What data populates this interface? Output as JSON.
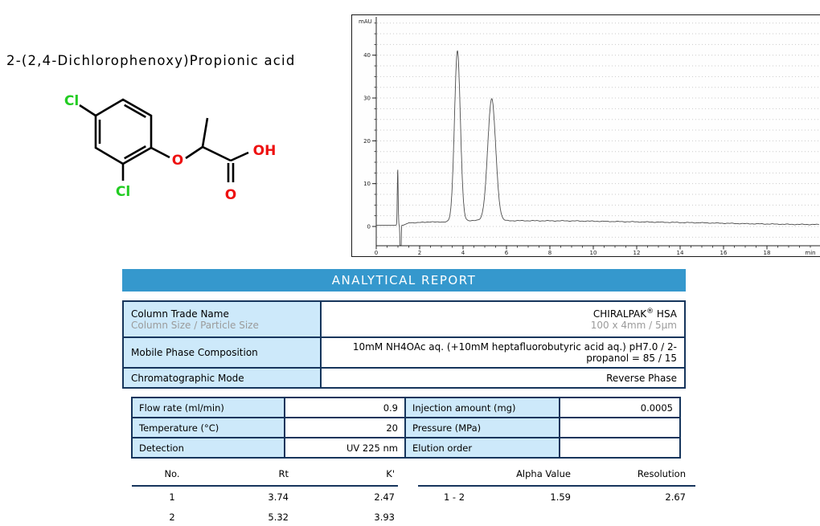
{
  "compound": {
    "name": "2-(2,4-Dichlorophenoxy)Propionic acid",
    "atoms": {
      "cl_top": "Cl",
      "cl_bottom": "Cl",
      "ether_o": "O",
      "carbonyl_o": "O",
      "hydroxyl": "OH"
    }
  },
  "chart_data": {
    "type": "line",
    "title": "",
    "xlabel": "min",
    "ylabel": "mAU",
    "xlim": [
      0,
      20.4
    ],
    "ylim": [
      -4.5,
      49
    ],
    "grid": "dotted horizontal",
    "x_ticks": [
      0,
      2,
      4,
      6,
      8,
      10,
      12,
      14,
      16,
      18
    ],
    "x_minor_step": 0.5,
    "y_ticks": [
      0,
      10,
      20,
      30,
      40
    ],
    "y_minor_step": 2.5,
    "peaks": [
      {
        "name": "injection-spike",
        "center": 0.99,
        "height": 13.0,
        "sigma": 0.02
      },
      {
        "name": "injection-dip",
        "center": 1.12,
        "height": -45,
        "sigma": 0.016
      },
      {
        "name": "peak-1",
        "center": 3.74,
        "height": 39.8,
        "sigma": 0.135
      },
      {
        "name": "peak-2",
        "center": 5.32,
        "height": 28.4,
        "sigma": 0.185
      }
    ],
    "baseline_points": [
      [
        0,
        0.3
      ],
      [
        0.85,
        0.3
      ],
      [
        1.25,
        0.3
      ],
      [
        1.5,
        0.85
      ],
      [
        2.2,
        0.95
      ],
      [
        2.5,
        1.1
      ],
      [
        2.8,
        1.0
      ],
      [
        3.2,
        1.1
      ],
      [
        4.4,
        1.4
      ],
      [
        6.0,
        1.35
      ],
      [
        9.0,
        1.3
      ],
      [
        11,
        1.15
      ],
      [
        13,
        1.0
      ],
      [
        15,
        0.85
      ],
      [
        17,
        0.65
      ],
      [
        19,
        0.5
      ],
      [
        20.4,
        0.45
      ]
    ],
    "annotated_peaks": [
      {
        "no": 1,
        "rt_min": 3.74,
        "apex_mAU": 41.2
      },
      {
        "no": 2,
        "rt_min": 5.32,
        "apex_mAU": 29.8
      }
    ]
  },
  "report": {
    "banner": "ANALYTICAL REPORT",
    "info_rows": {
      "trade": {
        "label": "Column Trade Name",
        "sublabel": "Column Size / Particle Size",
        "value_brand": "CHIRALPAK",
        "value_reg": "®",
        "value_suffix": " HSA",
        "subvalue": "100 x 4mm / 5µm"
      },
      "mobile": {
        "label": "Mobile Phase Composition",
        "value": "10mM NH4OAc  aq. (+10mM heptafluorobutyric acid aq.) pH7.0 / 2-propanol = 85 / 15"
      },
      "mode": {
        "label": "Chromatographic Mode",
        "value": "Reverse Phase"
      }
    },
    "params": [
      {
        "label": "Flow rate (ml/min)",
        "value": "0.9",
        "label2": "Injection amount (mg)",
        "value2": "0.0005"
      },
      {
        "label": "Temperature (°C)",
        "value": "20",
        "label2": "Pressure (MPa)",
        "value2": ""
      },
      {
        "label": "Detection",
        "value": "UV 225 nm",
        "label2": "Elution order",
        "value2": ""
      }
    ],
    "results_left": {
      "headers": [
        "No.",
        "Rt",
        "K'"
      ],
      "rows": [
        [
          "1",
          "3.74",
          "2.47"
        ],
        [
          "2",
          "5.32",
          "3.93"
        ]
      ]
    },
    "results_right": {
      "headers": [
        "",
        "Alpha Value",
        "Resolution"
      ],
      "rows": [
        [
          "1 - 2",
          "1.59",
          "2.67"
        ]
      ]
    }
  },
  "colors": {
    "banner_blue": "#3598cd",
    "cell_blue": "#cde9fa",
    "table_border_navy": "#16355c",
    "chlorine_green": "#22cc22",
    "oxygen_red": "#ee1111",
    "trace_gray": "#4d4d4d",
    "grid_dot_gray": "#c9c9c9"
  }
}
